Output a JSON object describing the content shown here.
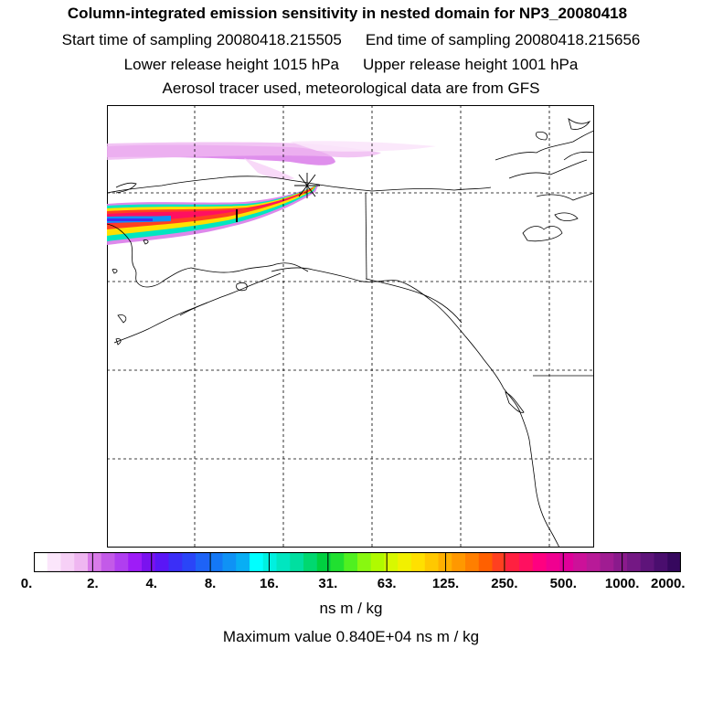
{
  "title": "Column-integrated emission sensitivity in nested domain for NP3_20080418",
  "start_label": "Start time of sampling 20080418.215505",
  "end_label": "End time of sampling 20080418.215656",
  "lower_label": "Lower release height 1015 hPa",
  "upper_label": "Upper release height 1001 hPa",
  "tracer_label": "Aerosol tracer used, meteorological data are from GFS",
  "colorbar": {
    "tick_labels": [
      "0.",
      "2.",
      "4.",
      "8.",
      "16.",
      "31.",
      "63.",
      "125.",
      "250.",
      "500.",
      "1000.",
      "2000."
    ],
    "colors": [
      "#ffffff",
      "#fbe6fb",
      "#f6d0f6",
      "#efb6f1",
      "#d97be9",
      "#c35ae8",
      "#b03ef0",
      "#9e1cf7",
      "#7a12ef",
      "#5a16f6",
      "#3b2ff7",
      "#2a45f8",
      "#1e63f7",
      "#1478f6",
      "#0f92f5",
      "#08aef4",
      "#00ffff",
      "#00f0e0",
      "#00e6c0",
      "#00dfa0",
      "#00d870",
      "#00d040",
      "#20e030",
      "#50f020",
      "#88f810",
      "#b0fa00",
      "#d8f800",
      "#f2f000",
      "#ffe000",
      "#ffc800",
      "#ffb000",
      "#ff9800",
      "#ff7f00",
      "#ff6000",
      "#ff4020",
      "#ff2040",
      "#ff1060",
      "#ff0080",
      "#f00090",
      "#e0009a",
      "#cc1199",
      "#b81a98",
      "#a01c92",
      "#8a1a8c",
      "#741884",
      "#5e147a",
      "#4a0e6e",
      "#36085e"
    ]
  },
  "units_label": "ns m / kg",
  "max_label": "Maximum value  0.840E+04 ns m / kg"
}
